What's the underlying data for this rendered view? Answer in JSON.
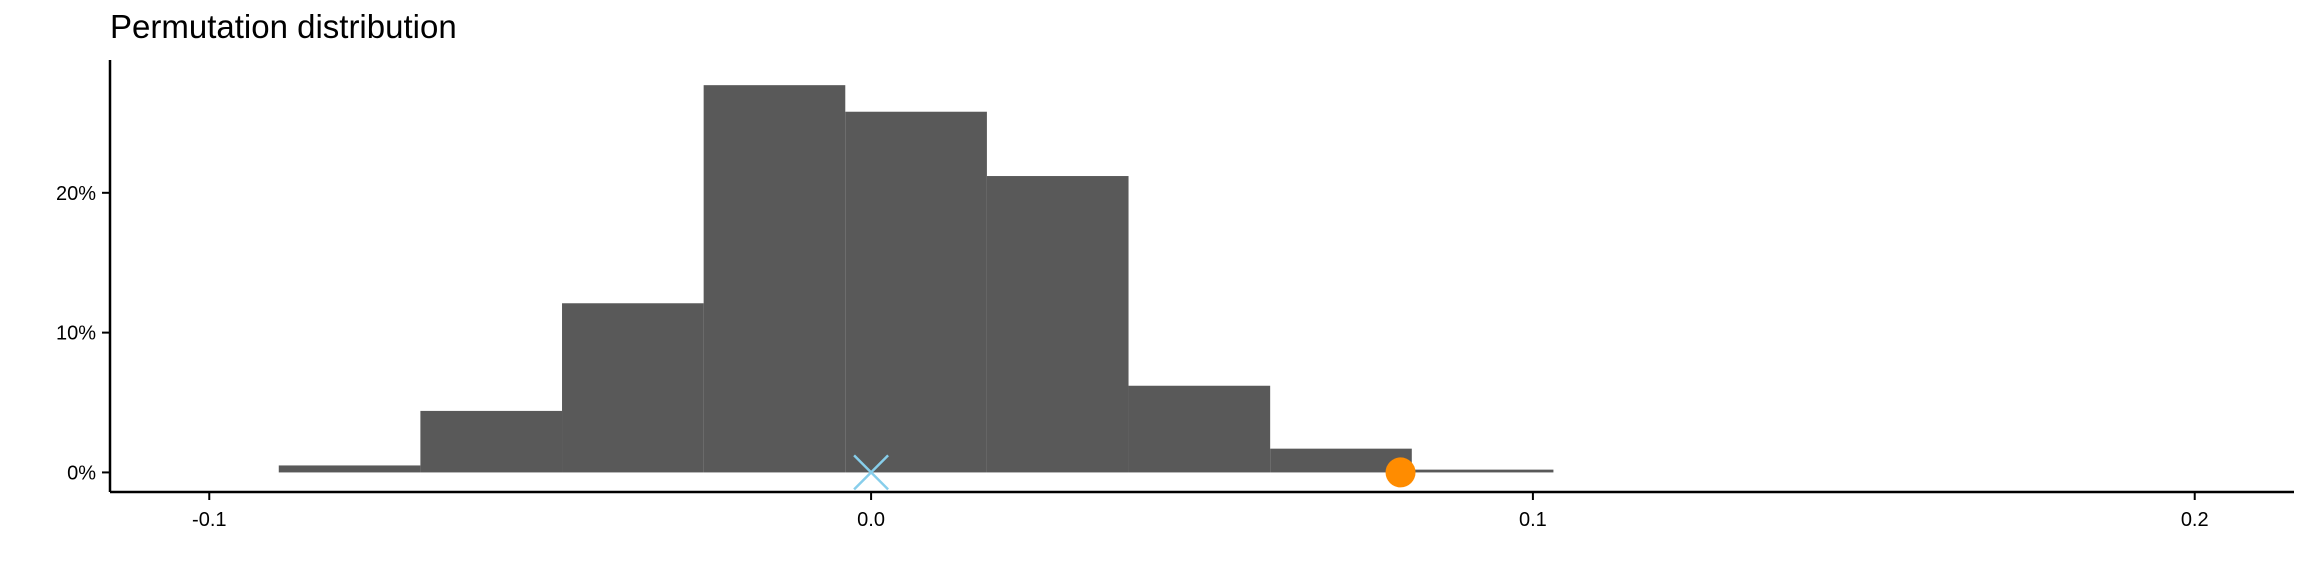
{
  "chart_data": {
    "type": "histogram",
    "title": "Permutation distribution",
    "xlabel": "",
    "ylabel": "",
    "xlim": [
      -0.115,
      0.215
    ],
    "ylim": [
      -0.014,
      0.295
    ],
    "x_ticks": [
      -0.1,
      0.0,
      0.1,
      0.2
    ],
    "x_tick_labels": [
      "-0.1",
      "0.0",
      "0.1",
      "0.2"
    ],
    "y_ticks": [
      0.0,
      0.1,
      0.2
    ],
    "y_tick_labels": [
      "0%",
      "10%",
      "20%"
    ],
    "bins": [
      {
        "x0": -0.0895,
        "x1": -0.0681,
        "value": 0.005
      },
      {
        "x0": -0.0681,
        "x1": -0.0467,
        "value": 0.044
      },
      {
        "x0": -0.0467,
        "x1": -0.0253,
        "value": 0.121
      },
      {
        "x0": -0.0253,
        "x1": -0.0039,
        "value": 0.277
      },
      {
        "x0": -0.0039,
        "x1": 0.0175,
        "value": 0.258
      },
      {
        "x0": 0.0175,
        "x1": 0.0389,
        "value": 0.212
      },
      {
        "x0": 0.0389,
        "x1": 0.0603,
        "value": 0.062
      },
      {
        "x0": 0.0603,
        "x1": 0.0817,
        "value": 0.017
      },
      {
        "x0": 0.0817,
        "x1": 0.1031,
        "value": 0.002
      }
    ],
    "markers": [
      {
        "shape": "cross",
        "x": 0.0,
        "y": 0.0,
        "color": "#87CEEB"
      },
      {
        "shape": "circle",
        "x": 0.08,
        "y": 0.0,
        "color": "#FF8C00"
      }
    ],
    "bar_color": "#595959",
    "grid": false
  }
}
